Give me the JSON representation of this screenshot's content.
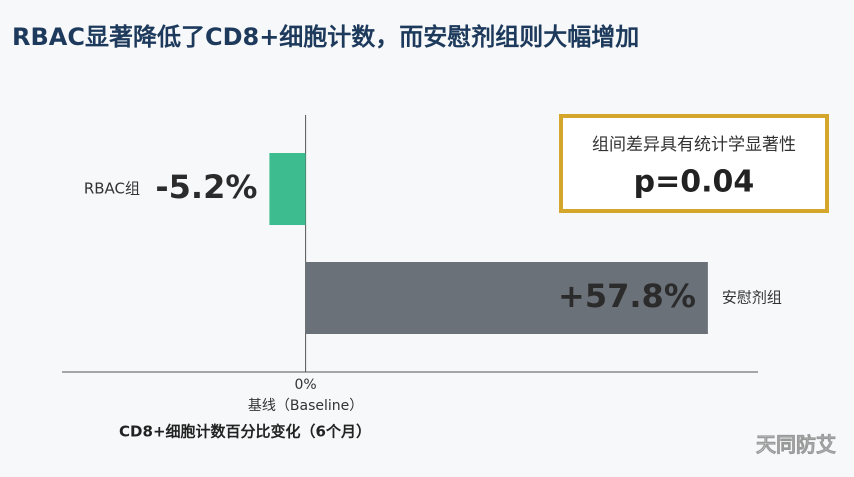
{
  "chart_data": {
    "type": "hbar",
    "title": "RBAC显著降低了CD8+细胞计数，而安慰剂组则大幅增加",
    "categories": [
      "RBAC组",
      "安慰剂组"
    ],
    "series": [
      {
        "values": [
          -5.2,
          57.8
        ],
        "value_labels": [
          "-5.2%",
          "+57.8%"
        ],
        "colors": [
          "#3dbd8f",
          "#6b7178"
        ]
      }
    ],
    "xlim": [
      -35,
      65
    ],
    "xticks": [
      {
        "value": 0,
        "label": "0%"
      }
    ],
    "baseline_label": "基线（Baseline）",
    "xlabel": "CD8+细胞计数百分比变化（6个月）",
    "annotation": {
      "title": "组间差异具有统计学显著性",
      "text": "p=0.04"
    },
    "watermark": "天同防艾"
  }
}
